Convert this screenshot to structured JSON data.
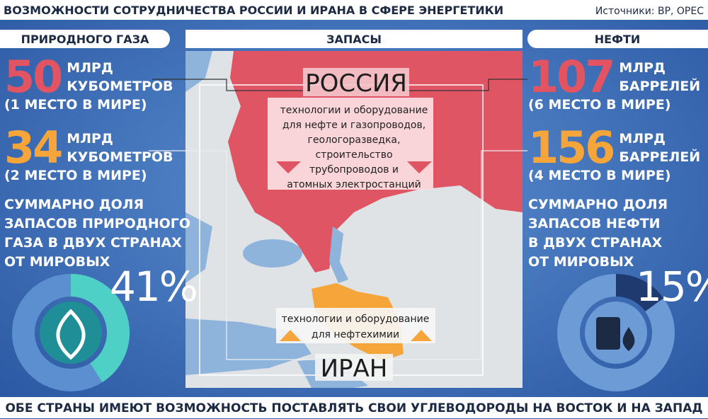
{
  "header": {
    "title": "ВОЗМОЖНОСТИ СОТРУДНИЧЕСТВА РОССИИ И ИРАНА В СФЕРЕ ЭНЕРГЕТИКИ",
    "source": "Источники: BP, OPEC"
  },
  "tabs": {
    "gas": "ПРИРОДНОГО ГАЗА",
    "reserves": "ЗАПАСЫ",
    "oil": "НЕФТИ"
  },
  "gas": {
    "russia": {
      "value": 50,
      "lines": [
        "МЛРД",
        "КУБОМЕТРОВ"
      ],
      "rank": "(1 МЕСТО В МИРЕ)"
    },
    "iran": {
      "value": 34,
      "lines": [
        "МЛРД",
        "КУБОМЕТРОВ"
      ],
      "rank": "(2 МЕСТО В МИРЕ)"
    },
    "share": {
      "text": [
        "СУММАРНО ДОЛЯ",
        "ЗАПАСОВ ПРИРОДНОГО",
        "ГАЗА В ДВУХ СТРАНАХ",
        "ОТ МИРОВЫХ"
      ],
      "value": 41,
      "value_label": "41%"
    }
  },
  "oil": {
    "russia": {
      "value": 107,
      "lines": [
        "МЛРД",
        "БАРРЕЛЕЙ"
      ],
      "rank": "(6 МЕСТО В МИРЕ)"
    },
    "iran": {
      "value": 156,
      "lines": [
        "МЛРД",
        "БАРРЕЛЕЙ"
      ],
      "rank": "(4 МЕСТО В МИРЕ)"
    },
    "share": {
      "text": [
        "СУММАРНО ДОЛЯ",
        "ЗАПАСОВ НЕФТИ",
        "В ДВУХ СТРАНАХ",
        "ОТ МИРОВЫХ"
      ],
      "value": 15,
      "value_label": "15%"
    }
  },
  "map": {
    "russia": {
      "name": "РОССИЯ",
      "note": [
        "технологии и оборудование",
        "для нефте и газопроводов,",
        "геологоразведка,",
        "строительство",
        "трубопроводов и",
        "атомных электростанций"
      ]
    },
    "iran": {
      "name": "ИРАН",
      "note": [
        "технологии и оборудование",
        "для нефтехимии"
      ]
    }
  },
  "footer": "ОБЕ СТРАНЫ ИМЕЮТ ВОЗМОЖНОСТЬ ПОСТАВЛЯТЬ СВОИ УГЛЕВОДОРОДЫ НА ВОСТОК И НА ЗАПАД"
}
